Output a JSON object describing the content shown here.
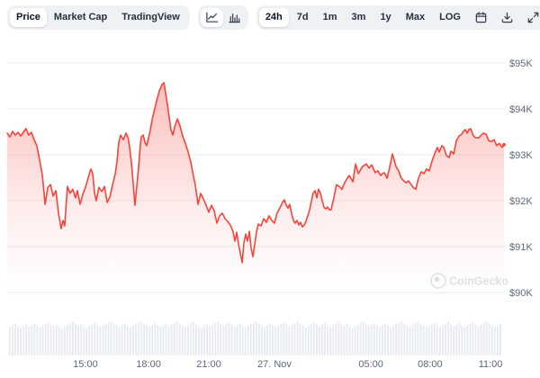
{
  "toolbar": {
    "metrics": [
      "Price",
      "Market Cap",
      "TradingView"
    ],
    "active_metric": "Price",
    "chart_type_icons": [
      "line-chart-icon",
      "bar-chart-icon"
    ],
    "active_chart_type": "line",
    "ranges": [
      "24h",
      "7d",
      "1m",
      "3m",
      "1y",
      "Max",
      "LOG"
    ],
    "active_range": "24h",
    "action_icons": [
      "calendar-icon",
      "download-icon",
      "expand-icon"
    ]
  },
  "watermark": {
    "text": "CoinGecko"
  },
  "colors": {
    "line": "#f8433a",
    "fill_top": "rgba(248,67,58,0.34)",
    "fill_bottom": "rgba(248,67,58,0)",
    "grid": "#eaedf1",
    "axis_text": "#5d6778",
    "volume_bar": "#e6ebf2",
    "toolbar_bg": "#eff2f5"
  },
  "chart_data": {
    "type": "area",
    "title": "",
    "xlabel": "",
    "ylabel": "",
    "legend": [],
    "grid": "horizontal",
    "y_axis_side": "right",
    "y_ticks": [
      {
        "label": "$95K",
        "value": 95
      },
      {
        "label": "$94K",
        "value": 94
      },
      {
        "label": "$93K",
        "value": 93
      },
      {
        "label": "$92K",
        "value": 92
      },
      {
        "label": "$91K",
        "value": 91
      },
      {
        "label": "$90K",
        "value": 90
      }
    ],
    "x_ticks": [
      {
        "label": "15:00",
        "t": 3.78
      },
      {
        "label": "18:00",
        "t": 6.83
      },
      {
        "label": "21:00",
        "t": 9.74
      },
      {
        "label": "27. Nov",
        "t": 12.91
      },
      {
        "label": "05:00",
        "t": 17.57
      },
      {
        "label": "08:00",
        "t": 20.43
      },
      {
        "label": "11:00",
        "t": 23.35
      }
    ],
    "xlim_hours": [
      0,
      24
    ],
    "ylim_price_k": [
      89.7,
      95.3
    ],
    "points_t_priceK": [
      [
        0,
        93.47
      ],
      [
        0.13,
        93.39
      ],
      [
        0.26,
        93.51
      ],
      [
        0.39,
        93.43
      ],
      [
        0.52,
        93.49
      ],
      [
        0.65,
        93.41
      ],
      [
        0.78,
        93.49
      ],
      [
        0.91,
        93.57
      ],
      [
        1.04,
        93.43
      ],
      [
        1.17,
        93.49
      ],
      [
        1.3,
        93.33
      ],
      [
        1.43,
        93.2
      ],
      [
        1.57,
        92.88
      ],
      [
        1.7,
        92.55
      ],
      [
        1.83,
        91.92
      ],
      [
        1.96,
        92.29
      ],
      [
        2.09,
        92.35
      ],
      [
        2.22,
        92.1
      ],
      [
        2.35,
        92.22
      ],
      [
        2.48,
        91.73
      ],
      [
        2.61,
        91.39
      ],
      [
        2.7,
        91.57
      ],
      [
        2.78,
        91.45
      ],
      [
        2.91,
        92.31
      ],
      [
        3.04,
        92.16
      ],
      [
        3.17,
        92.25
      ],
      [
        3.3,
        92.06
      ],
      [
        3.39,
        92.22
      ],
      [
        3.52,
        91.92
      ],
      [
        3.65,
        92.14
      ],
      [
        3.78,
        92.29
      ],
      [
        3.91,
        92.49
      ],
      [
        4.04,
        92.69
      ],
      [
        4.13,
        92.59
      ],
      [
        4.22,
        92.16
      ],
      [
        4.3,
        92
      ],
      [
        4.43,
        92.29
      ],
      [
        4.57,
        92.2
      ],
      [
        4.7,
        92.31
      ],
      [
        4.83,
        91.96
      ],
      [
        4.96,
        92.08
      ],
      [
        5.09,
        92.35
      ],
      [
        5.22,
        92.59
      ],
      [
        5.3,
        92.84
      ],
      [
        5.39,
        93.27
      ],
      [
        5.48,
        93.43
      ],
      [
        5.61,
        93.33
      ],
      [
        5.74,
        93.47
      ],
      [
        5.83,
        93.39
      ],
      [
        5.91,
        93.18
      ],
      [
        6,
        92.84
      ],
      [
        6.09,
        92.35
      ],
      [
        6.17,
        91.9
      ],
      [
        6.26,
        92.31
      ],
      [
        6.35,
        92.73
      ],
      [
        6.43,
        93.22
      ],
      [
        6.48,
        93.39
      ],
      [
        6.57,
        93.43
      ],
      [
        6.65,
        93.27
      ],
      [
        6.74,
        93.2
      ],
      [
        6.83,
        93.37
      ],
      [
        6.91,
        93.53
      ],
      [
        7,
        93.76
      ],
      [
        7.09,
        93.94
      ],
      [
        7.22,
        94.18
      ],
      [
        7.35,
        94.39
      ],
      [
        7.48,
        94.53
      ],
      [
        7.57,
        94.57
      ],
      [
        7.65,
        94.35
      ],
      [
        7.74,
        94.1
      ],
      [
        7.83,
        93.8
      ],
      [
        7.91,
        93.55
      ],
      [
        8,
        93.43
      ],
      [
        8.09,
        93.61
      ],
      [
        8.22,
        93.78
      ],
      [
        8.35,
        93.63
      ],
      [
        8.48,
        93.41
      ],
      [
        8.61,
        93.25
      ],
      [
        8.74,
        93.06
      ],
      [
        8.87,
        92.84
      ],
      [
        9,
        92.53
      ],
      [
        9.09,
        92.33
      ],
      [
        9.22,
        91.92
      ],
      [
        9.35,
        92.16
      ],
      [
        9.48,
        92.04
      ],
      [
        9.61,
        91.9
      ],
      [
        9.74,
        91.75
      ],
      [
        9.87,
        91.9
      ],
      [
        10,
        91.78
      ],
      [
        10.13,
        91.51
      ],
      [
        10.26,
        91.67
      ],
      [
        10.39,
        91.73
      ],
      [
        10.52,
        91.61
      ],
      [
        10.65,
        91.55
      ],
      [
        10.78,
        91.47
      ],
      [
        10.91,
        91.33
      ],
      [
        11,
        91.12
      ],
      [
        11.09,
        91.31
      ],
      [
        11.17,
        91.06
      ],
      [
        11.26,
        90.86
      ],
      [
        11.35,
        90.65
      ],
      [
        11.43,
        91.06
      ],
      [
        11.52,
        91.27
      ],
      [
        11.61,
        91.12
      ],
      [
        11.7,
        91.33
      ],
      [
        11.78,
        90.98
      ],
      [
        11.87,
        90.78
      ],
      [
        11.96,
        91.06
      ],
      [
        12.04,
        91.31
      ],
      [
        12.13,
        91.49
      ],
      [
        12.26,
        91.45
      ],
      [
        12.39,
        91.61
      ],
      [
        12.52,
        91.53
      ],
      [
        12.65,
        91.67
      ],
      [
        12.78,
        91.57
      ],
      [
        12.91,
        91.51
      ],
      [
        13.04,
        91.73
      ],
      [
        13.17,
        91.84
      ],
      [
        13.3,
        91.96
      ],
      [
        13.39,
        92.02
      ],
      [
        13.48,
        91.9
      ],
      [
        13.57,
        91.84
      ],
      [
        13.65,
        91.92
      ],
      [
        13.74,
        91.72
      ],
      [
        13.83,
        91.57
      ],
      [
        13.91,
        91.51
      ],
      [
        14,
        91.57
      ],
      [
        14.09,
        91.47
      ],
      [
        14.17,
        91.53
      ],
      [
        14.26,
        91.43
      ],
      [
        14.35,
        91.47
      ],
      [
        14.43,
        91.55
      ],
      [
        14.52,
        91.67
      ],
      [
        14.61,
        91.8
      ],
      [
        14.7,
        92
      ],
      [
        14.78,
        92.16
      ],
      [
        14.87,
        92.22
      ],
      [
        14.96,
        92.06
      ],
      [
        15.04,
        92.25
      ],
      [
        15.13,
        92.16
      ],
      [
        15.22,
        92
      ],
      [
        15.3,
        91.86
      ],
      [
        15.39,
        91.82
      ],
      [
        15.48,
        91.86
      ],
      [
        15.57,
        91.8
      ],
      [
        15.65,
        91.8
      ],
      [
        15.78,
        92.06
      ],
      [
        15.91,
        92.35
      ],
      [
        16.04,
        92.31
      ],
      [
        16.17,
        92.25
      ],
      [
        16.3,
        92.39
      ],
      [
        16.43,
        92.49
      ],
      [
        16.52,
        92.55
      ],
      [
        16.7,
        92.41
      ],
      [
        16.83,
        92.8
      ],
      [
        16.96,
        92.59
      ],
      [
        17.09,
        92.69
      ],
      [
        17.17,
        92.75
      ],
      [
        17.35,
        92.8
      ],
      [
        17.48,
        92.71
      ],
      [
        17.61,
        92.78
      ],
      [
        17.78,
        92.61
      ],
      [
        17.91,
        92.65
      ],
      [
        18.04,
        92.55
      ],
      [
        18.13,
        92.59
      ],
      [
        18.22,
        92.61
      ],
      [
        18.35,
        92.49
      ],
      [
        18.48,
        92.73
      ],
      [
        18.61,
        93.02
      ],
      [
        18.7,
        92.88
      ],
      [
        18.78,
        92.75
      ],
      [
        18.91,
        92.65
      ],
      [
        19.04,
        92.49
      ],
      [
        19.17,
        92.43
      ],
      [
        19.26,
        92.39
      ],
      [
        19.39,
        92.43
      ],
      [
        19.52,
        92.35
      ],
      [
        19.61,
        92.29
      ],
      [
        19.74,
        92.25
      ],
      [
        19.87,
        92.49
      ],
      [
        20,
        92.63
      ],
      [
        20.13,
        92.59
      ],
      [
        20.26,
        92.69
      ],
      [
        20.39,
        92.65
      ],
      [
        20.52,
        92.86
      ],
      [
        20.65,
        93.02
      ],
      [
        20.78,
        93.16
      ],
      [
        20.87,
        93.06
      ],
      [
        21,
        93.2
      ],
      [
        21.09,
        93.16
      ],
      [
        21.22,
        92.98
      ],
      [
        21.35,
        92.94
      ],
      [
        21.43,
        93.08
      ],
      [
        21.57,
        93.02
      ],
      [
        21.7,
        93.31
      ],
      [
        21.83,
        93.41
      ],
      [
        21.96,
        93.45
      ],
      [
        22.04,
        93.51
      ],
      [
        22.13,
        93.55
      ],
      [
        22.22,
        93.47
      ],
      [
        22.3,
        93.55
      ],
      [
        22.39,
        93.57
      ],
      [
        22.52,
        93.41
      ],
      [
        22.65,
        93.37
      ],
      [
        22.78,
        93.37
      ],
      [
        22.91,
        93.43
      ],
      [
        23,
        93.47
      ],
      [
        23.13,
        93.45
      ],
      [
        23.26,
        93.31
      ],
      [
        23.39,
        93.29
      ],
      [
        23.52,
        93.33
      ],
      [
        23.65,
        93.2
      ],
      [
        23.78,
        93.25
      ],
      [
        23.91,
        93.16
      ],
      [
        24,
        93.22
      ]
    ],
    "volume_bars_norm": [
      0.76,
      0.8,
      0.84,
      0.78,
      0.74,
      0.79,
      0.83,
      0.77,
      0.81,
      0.85,
      0.8,
      0.75,
      0.79,
      0.84,
      0.88,
      0.82,
      0.78,
      0.81,
      0.76,
      0.72,
      0.77,
      0.81,
      0.86,
      0.9,
      0.84,
      0.79,
      0.82,
      0.77,
      0.73,
      0.78,
      0.82,
      0.87,
      0.81,
      0.76,
      0.8,
      0.84,
      0.88,
      0.92,
      0.85,
      0.8,
      0.76,
      0.81,
      0.85,
      0.79,
      0.74,
      0.79,
      0.83,
      0.88,
      0.92,
      0.86,
      0.81,
      0.77,
      0.82,
      0.86,
      0.8,
      0.75,
      0.8,
      0.84,
      0.78,
      0.82,
      0.87,
      0.91,
      0.84,
      0.79,
      0.75,
      0.8,
      0.85,
      0.89,
      0.83,
      0.78,
      0.74,
      0.79,
      0.83,
      0.77,
      0.81,
      0.86,
      0.9,
      0.84,
      0.79,
      0.83,
      0.87,
      0.81,
      0.76,
      0.8,
      0.85,
      0.79,
      0.74,
      0.78,
      0.83,
      0.87,
      0.91,
      0.86,
      0.8,
      0.76,
      0.81,
      0.85,
      0.79,
      0.75,
      0.8,
      0.84,
      0.88,
      0.82,
      0.77,
      0.81,
      0.86,
      0.9,
      0.83,
      0.78,
      0.74,
      0.79,
      0.84,
      0.88,
      0.82,
      0.77,
      0.82,
      0.86,
      0.8,
      0.75,
      0.8,
      0.85,
      0.89,
      0.83,
      0.79,
      0.83,
      0.77,
      0.72,
      0.77,
      0.82,
      0.86,
      0.9,
      0.84,
      0.78,
      0.82,
      0.87,
      0.81,
      0.76,
      0.81,
      0.85,
      0.79,
      0.74,
      0.79,
      0.84,
      0.88,
      0.92,
      0.85,
      0.8,
      0.76,
      0.81,
      0.86,
      0.9,
      0.84,
      0.79,
      0.74,
      0.78,
      0.83,
      0.87,
      0.81,
      0.76,
      0.8,
      0.85,
      0.89,
      0.83,
      0.78,
      0.82,
      0.86,
      0.8,
      0.75,
      0.79,
      0.84,
      0.88,
      0.82,
      0.77,
      0.81,
      0.85,
      0.89,
      0.84,
      0.8,
      0.76,
      0.8,
      0.84
    ]
  }
}
